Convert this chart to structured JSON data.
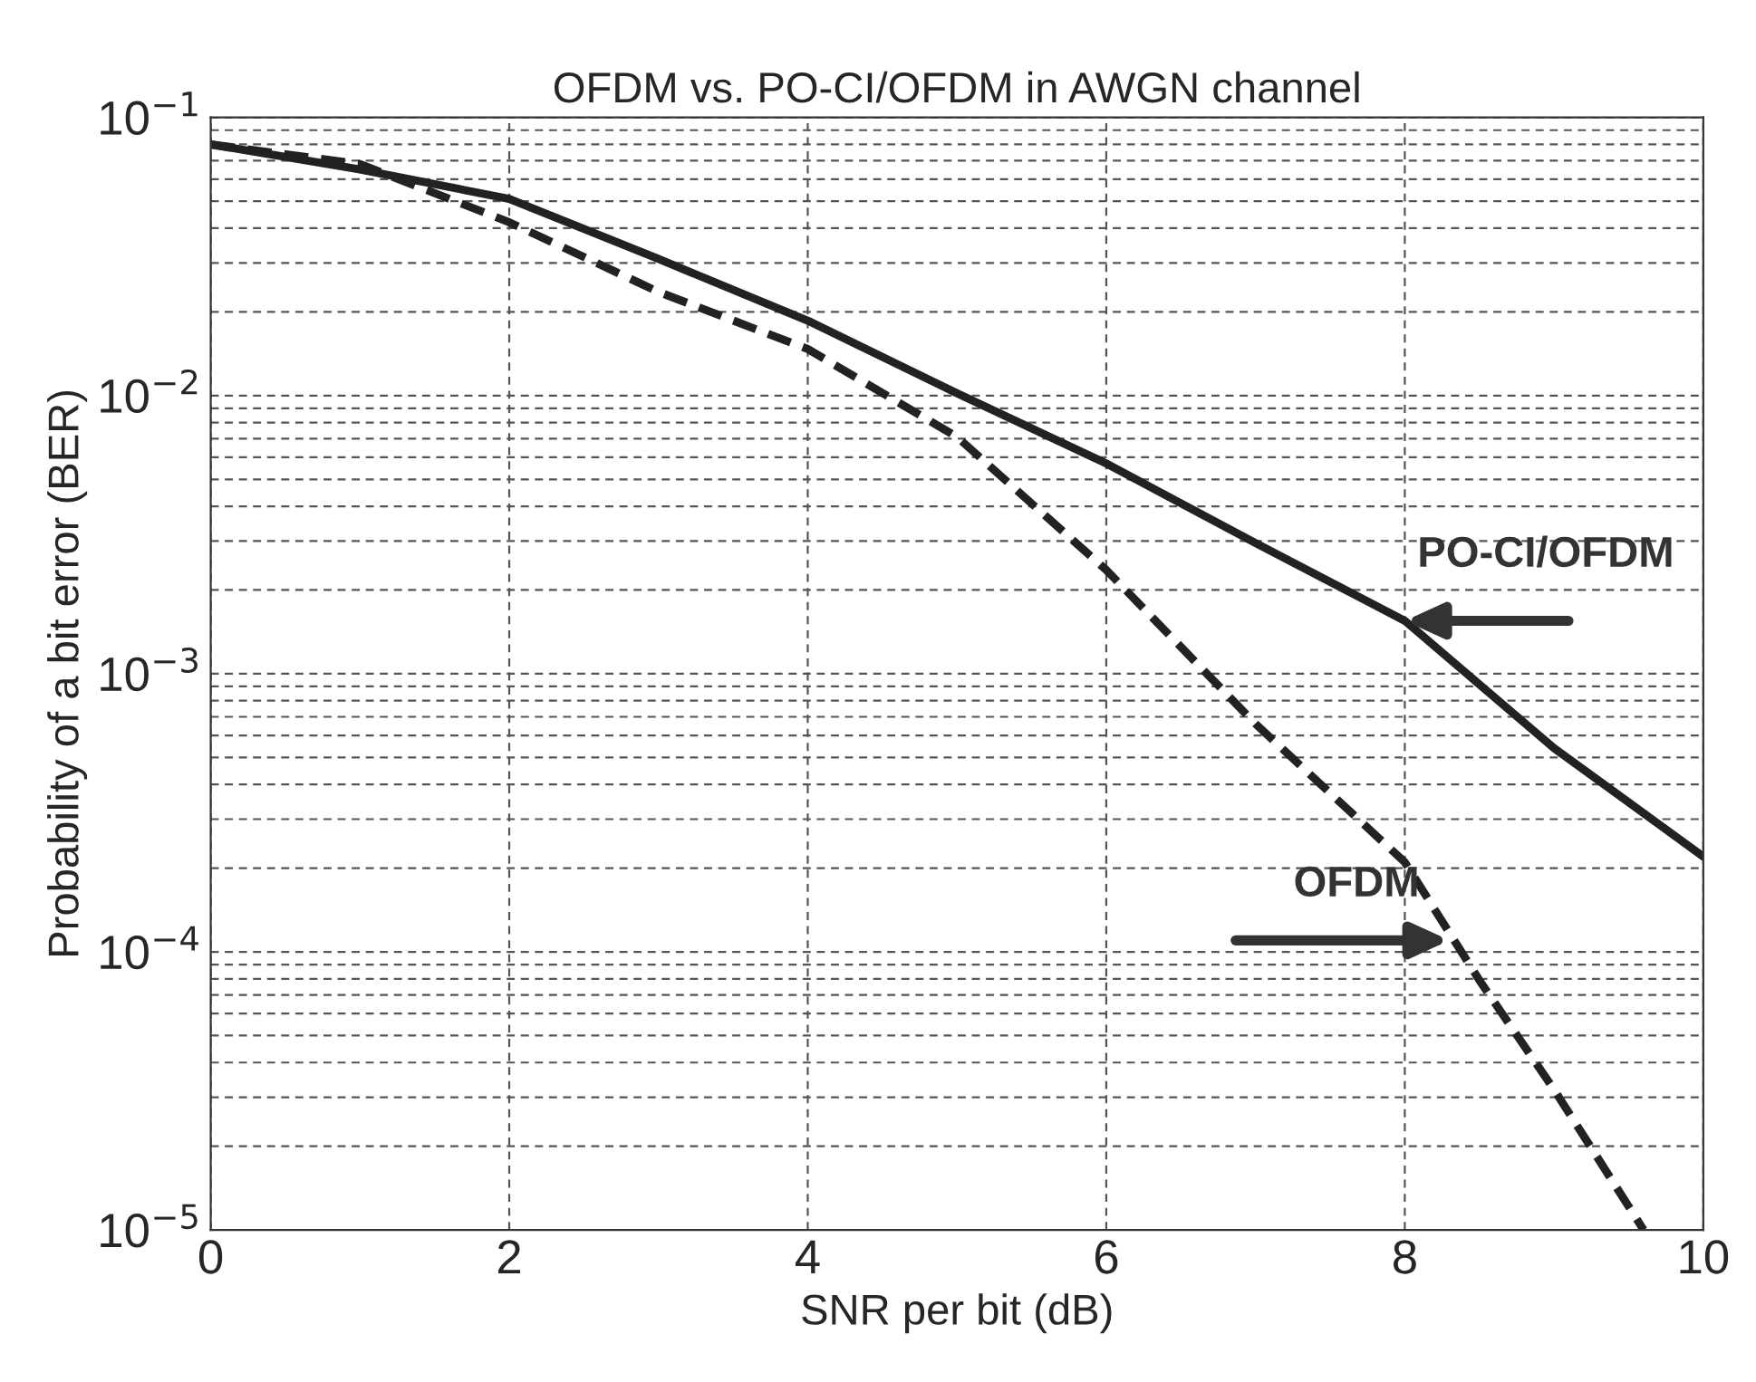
{
  "chart_data": {
    "type": "line",
    "title": "OFDM vs. PO-CI/OFDM in AWGN channel",
    "xlabel": "SNR per bit (dB)",
    "ylabel": "Probability of a bit error (BER)",
    "series": [
      {
        "color": "#222222",
        "line_style": "solid",
        "x": [
          0,
          1,
          2,
          3,
          4,
          5,
          6,
          7,
          8,
          9,
          10
        ],
        "values": [
          0.08,
          0.065,
          0.051,
          0.031,
          0.0186,
          0.0102,
          0.0057,
          0.00295,
          0.00155,
          0.00054,
          0.00022
        ]
      },
      {
        "color": "#222222",
        "line_style": "dashed",
        "x": [
          0,
          1,
          2,
          3,
          4,
          5,
          6,
          7,
          8,
          8.5,
          9,
          9.6
        ],
        "values": [
          0.08,
          0.068,
          0.042,
          0.0236,
          0.0147,
          0.0071,
          0.00236,
          0.00066,
          0.00021,
          7.9e-05,
          3.2e-05,
          1e-05
        ]
      }
    ],
    "annotations": [
      {
        "text": "PO-CI/OFDM",
        "x": 8,
        "y": 0.00155
      },
      {
        "text": "OFDM",
        "x": 8.3,
        "y": 0.00011
      }
    ],
    "log": "y",
    "xlim": [
      0,
      10
    ],
    "ylim": [
      1e-05,
      0.1
    ],
    "xticks": [
      0,
      2,
      4,
      6,
      8,
      10
    ],
    "yticks": [
      {
        "value": 1e-05,
        "label": "10$^{−5}$"
      },
      {
        "value": 0.0001,
        "label": "10$^{−4}$"
      },
      {
        "value": 0.001,
        "label": "10$^{−3}$"
      },
      {
        "value": 0.01,
        "label": "10$^{−2}$"
      },
      {
        "value": 0.1,
        "label": "10$^{−1}$"
      }
    ],
    "grid": true,
    "marker": "none",
    "legend": false
  }
}
